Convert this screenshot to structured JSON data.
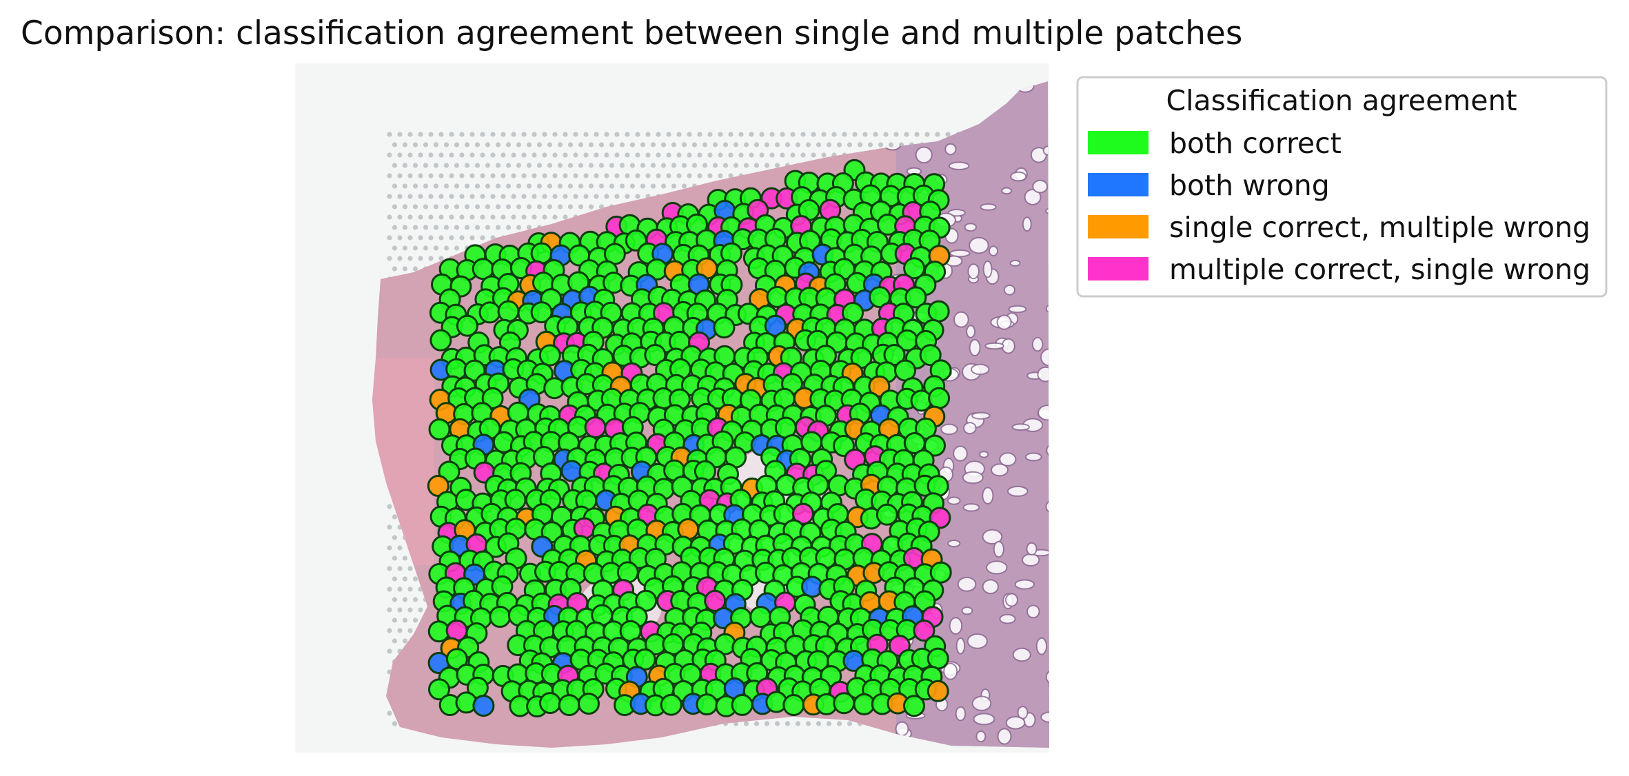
{
  "chart_data": {
    "type": "scatter",
    "title": "Comparison: classification agreement between single and multiple patches",
    "xlabel": "",
    "ylabel": "",
    "axes_visible": false,
    "background": "H&E tissue section with spatial transcriptomics spot grid",
    "legend": {
      "title": "Classification agreement",
      "placement": "outside-right",
      "entries": [
        {
          "key": "both_correct",
          "label": "both correct",
          "color": "#1efc1e"
        },
        {
          "key": "both_wrong",
          "label": "both wrong",
          "color": "#1f77ff"
        },
        {
          "key": "single_correct",
          "label": "single correct, multiple wrong",
          "color": "#ff9a00"
        },
        {
          "key": "multiple_correct",
          "label": "multiple correct, single wrong",
          "color": "#ff33cc"
        }
      ]
    },
    "marker": {
      "edge_color": "#0d3d0d",
      "alpha": 0.9
    },
    "category_proportions": {
      "both_correct": 0.8,
      "both_wrong": 0.07,
      "single_correct": 0.055,
      "multiple_correct": 0.075
    },
    "spots_approx_count": 880
  }
}
